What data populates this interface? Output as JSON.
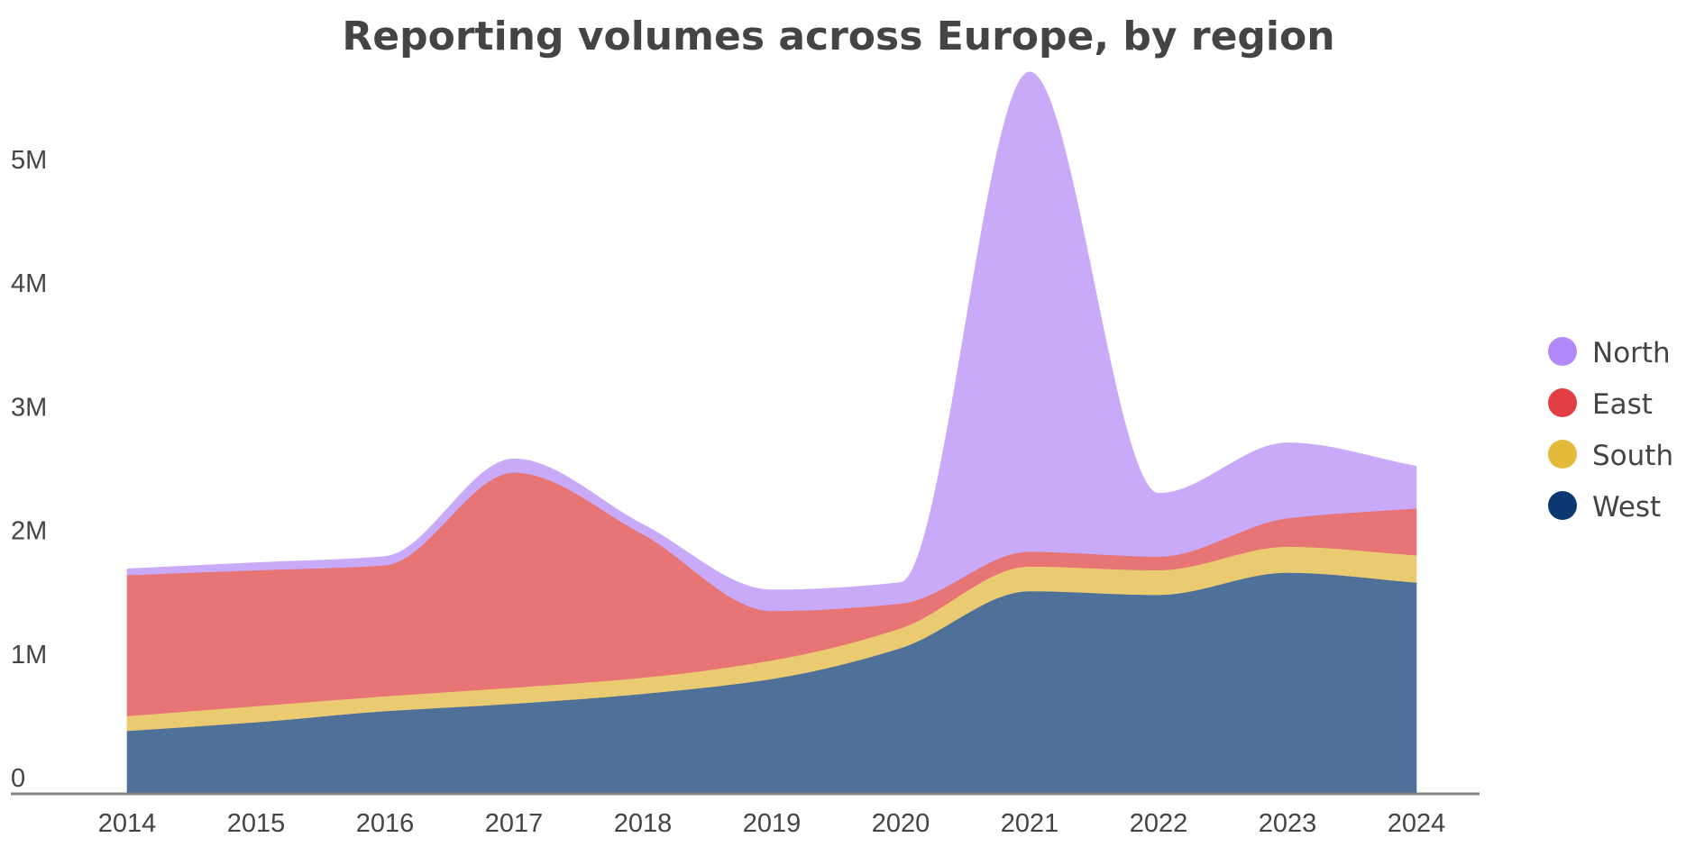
{
  "chart_data": {
    "type": "area",
    "stacked": true,
    "title": "Reporting volumes across Europe, by region",
    "xlabel": "",
    "ylabel": "",
    "x": [
      "2014",
      "2015",
      "2016",
      "2017",
      "2018",
      "2019",
      "2020",
      "2021",
      "2022",
      "2023",
      "2024"
    ],
    "y_ticks": [
      {
        "value": 0,
        "label": "0"
      },
      {
        "value": 1000000,
        "label": "1M"
      },
      {
        "value": 2000000,
        "label": "2M"
      },
      {
        "value": 3000000,
        "label": "3M"
      },
      {
        "value": 4000000,
        "label": "4M"
      },
      {
        "value": 5000000,
        "label": "5M"
      }
    ],
    "ylim": [
      0,
      5800000
    ],
    "grid": false,
    "legend_position": "right",
    "series": [
      {
        "name": "West",
        "color": "#0B3871",
        "fill": "#4F7099",
        "values": [
          510000,
          580000,
          670000,
          730000,
          810000,
          930000,
          1180000,
          1640000,
          1610000,
          1790000,
          1710000
        ]
      },
      {
        "name": "South",
        "color": "#E5B93A",
        "fill": "#EACB71",
        "values": [
          120000,
          130000,
          120000,
          130000,
          130000,
          150000,
          160000,
          200000,
          200000,
          210000,
          220000
        ]
      },
      {
        "name": "East",
        "color": "#E03E43",
        "fill": "#E87575",
        "values": [
          1140000,
          1100000,
          1060000,
          1740000,
          1160000,
          400000,
          200000,
          120000,
          110000,
          230000,
          380000
        ]
      },
      {
        "name": "North",
        "color": "#B388F8",
        "fill": "#C8AAF9",
        "values": [
          50000,
          60000,
          70000,
          110000,
          80000,
          170000,
          170000,
          3880000,
          510000,
          610000,
          340000
        ]
      }
    ],
    "legend": [
      {
        "name": "North",
        "color": "#B388F8"
      },
      {
        "name": "East",
        "color": "#E03E43"
      },
      {
        "name": "South",
        "color": "#E5B93A"
      },
      {
        "name": "West",
        "color": "#0B3871"
      }
    ]
  }
}
